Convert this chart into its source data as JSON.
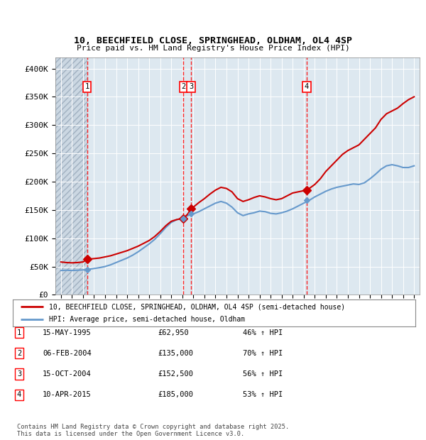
{
  "title": "10, BEECHFIELD CLOSE, SPRINGHEAD, OLDHAM, OL4 4SP",
  "subtitle": "Price paid vs. HM Land Registry's House Price Index (HPI)",
  "ylabel_ticks": [
    "£0",
    "£50K",
    "£100K",
    "£150K",
    "£200K",
    "£250K",
    "£300K",
    "£350K",
    "£400K"
  ],
  "ytick_values": [
    0,
    50000,
    100000,
    150000,
    200000,
    250000,
    300000,
    350000,
    400000
  ],
  "ylim": [
    0,
    420000
  ],
  "xlim_years": [
    1992.5,
    2025.5
  ],
  "hpi_line_color": "#6699cc",
  "price_line_color": "#cc0000",
  "bg_color": "#dde8f0",
  "hatch_x_end": 1995.37,
  "transactions": [
    {
      "id": 1,
      "date": "15-MAY-1995",
      "price": 62950,
      "pct": "46%",
      "year_x": 1995.37
    },
    {
      "id": 2,
      "date": "06-FEB-2004",
      "price": 135000,
      "pct": "70%",
      "year_x": 2004.1
    },
    {
      "id": 3,
      "date": "15-OCT-2004",
      "price": 152500,
      "pct": "56%",
      "year_x": 2004.79
    },
    {
      "id": 4,
      "date": "10-APR-2015",
      "price": 185000,
      "pct": "53%",
      "year_x": 2015.27
    }
  ],
  "legend_line1": "10, BEECHFIELD CLOSE, SPRINGHEAD, OLDHAM, OL4 4SP (semi-detached house)",
  "legend_line2": "HPI: Average price, semi-detached house, Oldham",
  "footer1": "Contains HM Land Registry data © Crown copyright and database right 2025.",
  "footer2": "This data is licensed under the Open Government Licence v3.0.",
  "price_line_x": [
    1993.0,
    1993.5,
    1994.0,
    1994.5,
    1995.0,
    1995.37,
    1995.5,
    1996.0,
    1996.5,
    1997.0,
    1997.5,
    1998.0,
    1998.5,
    1999.0,
    1999.5,
    2000.0,
    2000.5,
    2001.0,
    2001.5,
    2002.0,
    2002.5,
    2003.0,
    2003.5,
    2004.0,
    2004.1,
    2004.5,
    2004.79,
    2005.0,
    2005.5,
    2006.0,
    2006.5,
    2007.0,
    2007.5,
    2008.0,
    2008.5,
    2009.0,
    2009.5,
    2010.0,
    2010.5,
    2011.0,
    2011.5,
    2012.0,
    2012.5,
    2013.0,
    2013.5,
    2014.0,
    2014.5,
    2015.0,
    2015.27,
    2015.5,
    2016.0,
    2016.5,
    2017.0,
    2017.5,
    2018.0,
    2018.5,
    2019.0,
    2019.5,
    2020.0,
    2020.5,
    2021.0,
    2021.5,
    2022.0,
    2022.5,
    2023.0,
    2023.5,
    2024.0,
    2024.5,
    2025.0
  ],
  "price_line_y": [
    58000,
    57000,
    56500,
    57000,
    58000,
    62950,
    63000,
    64000,
    65000,
    67000,
    69000,
    72000,
    75000,
    78000,
    82000,
    86000,
    91000,
    96000,
    103000,
    112000,
    122000,
    130000,
    133000,
    135000,
    135000,
    143000,
    152500,
    155000,
    163000,
    170000,
    178000,
    185000,
    190000,
    188000,
    182000,
    170000,
    165000,
    168000,
    172000,
    175000,
    173000,
    170000,
    168000,
    170000,
    175000,
    180000,
    182000,
    184000,
    185000,
    188000,
    195000,
    205000,
    218000,
    228000,
    238000,
    248000,
    255000,
    260000,
    265000,
    275000,
    285000,
    295000,
    310000,
    320000,
    325000,
    330000,
    338000,
    345000,
    350000
  ],
  "hpi_line_x": [
    1993.0,
    1993.5,
    1994.0,
    1994.5,
    1995.0,
    1995.5,
    1996.0,
    1996.5,
    1997.0,
    1997.5,
    1998.0,
    1998.5,
    1999.0,
    1999.5,
    2000.0,
    2000.5,
    2001.0,
    2001.5,
    2002.0,
    2002.5,
    2003.0,
    2003.5,
    2004.0,
    2004.5,
    2005.0,
    2005.5,
    2006.0,
    2006.5,
    2007.0,
    2007.5,
    2008.0,
    2008.5,
    2009.0,
    2009.5,
    2010.0,
    2010.5,
    2011.0,
    2011.5,
    2012.0,
    2012.5,
    2013.0,
    2013.5,
    2014.0,
    2014.5,
    2015.0,
    2015.5,
    2016.0,
    2016.5,
    2017.0,
    2017.5,
    2018.0,
    2018.5,
    2019.0,
    2019.5,
    2020.0,
    2020.5,
    2021.0,
    2021.5,
    2022.0,
    2022.5,
    2023.0,
    2023.5,
    2024.0,
    2024.5,
    2025.0
  ],
  "hpi_line_y": [
    43000,
    43500,
    43000,
    43500,
    44000,
    45000,
    46500,
    48000,
    50000,
    53000,
    57000,
    61000,
    65000,
    70000,
    76000,
    83000,
    90000,
    98000,
    108000,
    119000,
    128000,
    133000,
    135000,
    140000,
    143000,
    147000,
    152000,
    157000,
    162000,
    165000,
    162000,
    155000,
    145000,
    140000,
    143000,
    145000,
    148000,
    147000,
    144000,
    143000,
    145000,
    148000,
    152000,
    157000,
    162000,
    167000,
    173000,
    178000,
    183000,
    187000,
    190000,
    192000,
    194000,
    196000,
    195000,
    198000,
    205000,
    213000,
    222000,
    228000,
    230000,
    228000,
    225000,
    225000,
    228000
  ]
}
